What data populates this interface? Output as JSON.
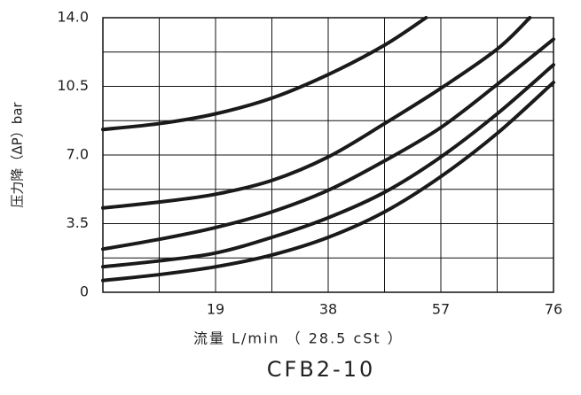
{
  "chart_data": {
    "type": "line",
    "title": "CFB2-10",
    "x_label": "流量 L/min （ 28.5 cSt ）",
    "y_label": "压力降（ΔP）bar",
    "xlim": [
      0,
      76
    ],
    "ylim": [
      0,
      14
    ],
    "xticks": [
      19,
      38,
      57,
      76
    ],
    "yticks": [
      0,
      3.5,
      {
        "value": 7,
        "label": "7.0"
      },
      {
        "value": 10.5,
        "label": "10.5"
      },
      {
        "value": 14,
        "label": "14.0"
      }
    ],
    "xgrid": [
      9.5,
      28.5,
      47.5,
      66.5
    ],
    "ygrid": [
      1.75,
      5.25,
      8.75,
      12.25
    ],
    "grid": true,
    "series": [
      {
        "color": "#1a1a1a",
        "x": [
          0,
          9.5,
          19,
          28.5,
          38,
          47.5,
          54.5
        ],
        "values": [
          8.3,
          8.6,
          9.1,
          9.9,
          11.1,
          12.6,
          14.0
        ]
      },
      {
        "color": "#1a1a1a",
        "x": [
          0,
          9.5,
          19,
          28.5,
          38,
          47.5,
          57,
          66.5,
          72
        ],
        "values": [
          4.3,
          4.6,
          5.0,
          5.7,
          6.9,
          8.6,
          10.4,
          12.4,
          14.0
        ]
      },
      {
        "color": "#1a1a1a",
        "x": [
          0,
          9.5,
          19,
          28.5,
          38,
          47.5,
          57,
          66.5,
          76
        ],
        "values": [
          2.2,
          2.7,
          3.3,
          4.1,
          5.2,
          6.7,
          8.4,
          10.6,
          12.9
        ]
      },
      {
        "color": "#1a1a1a",
        "x": [
          0,
          9.5,
          19,
          28.5,
          38,
          47.5,
          57,
          66.5,
          76
        ],
        "values": [
          1.3,
          1.6,
          2.0,
          2.8,
          3.8,
          5.1,
          6.9,
          9.1,
          11.6
        ]
      },
      {
        "color": "#1a1a1a",
        "x": [
          0,
          9.5,
          19,
          28.5,
          38,
          47.5,
          57,
          66.5,
          76
        ],
        "values": [
          0.6,
          0.9,
          1.3,
          1.9,
          2.8,
          4.1,
          5.9,
          8.1,
          10.7
        ]
      }
    ]
  }
}
